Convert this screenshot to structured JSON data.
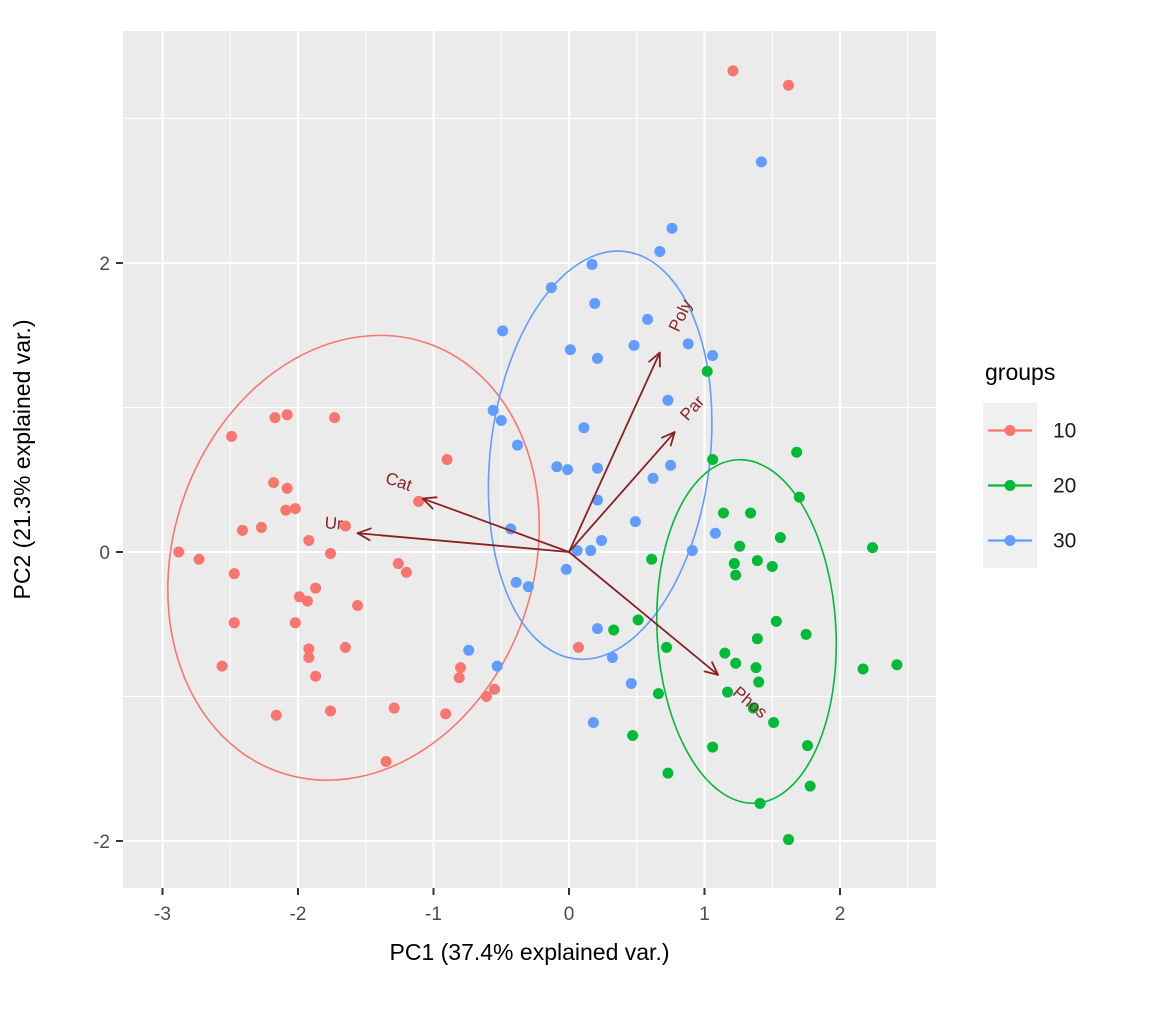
{
  "chart_data": {
    "type": "scatter",
    "title": "",
    "xlabel": "PC1 (37.4% explained var.)",
    "ylabel": "PC2 (21.3% explained var.)",
    "xlim": [
      -3.29,
      2.71
    ],
    "ylim": [
      -2.33,
      3.61
    ],
    "x_ticks": [
      -3,
      -2,
      -1,
      0,
      1,
      2
    ],
    "y_ticks": [
      -2,
      0,
      2
    ],
    "x_minor_ticks": [
      -2.5,
      -1.5,
      -0.5,
      0.5,
      1.5,
      2.5
    ],
    "y_minor_ticks": [
      -1,
      1,
      3
    ],
    "grid": "on",
    "panel_background": "#EBEBEB",
    "grid_color": "#FFFFFF",
    "tick_label_color": "#4D4D4D",
    "axis_title_color": "#000000",
    "legend": {
      "title": "groups",
      "position": "right",
      "key_background": "#F0F0F0",
      "entries": [
        {
          "label": "10",
          "color": "#F8766D"
        },
        {
          "label": "20",
          "color": "#00BA38"
        },
        {
          "label": "30",
          "color": "#619CFF"
        }
      ]
    },
    "series": [
      {
        "name": "10",
        "color": "#F8766D",
        "points": [
          [
            -2.17,
            0.93
          ],
          [
            -2.08,
            0.95
          ],
          [
            -1.73,
            0.93
          ],
          [
            -2.49,
            0.8
          ],
          [
            -0.9,
            0.64
          ],
          [
            -2.18,
            0.48
          ],
          [
            -2.08,
            0.44
          ],
          [
            -2.09,
            0.29
          ],
          [
            -2.02,
            0.3
          ],
          [
            -2.41,
            0.15
          ],
          [
            -2.27,
            0.17
          ],
          [
            -1.65,
            0.18
          ],
          [
            -1.11,
            0.35
          ],
          [
            -1.92,
            0.08
          ],
          [
            -1.76,
            -0.01
          ],
          [
            -2.88,
            0.0
          ],
          [
            -2.73,
            -0.05
          ],
          [
            -1.26,
            -0.08
          ],
          [
            -1.2,
            -0.14
          ],
          [
            -2.47,
            -0.15
          ],
          [
            -1.87,
            -0.25
          ],
          [
            -1.99,
            -0.31
          ],
          [
            -1.93,
            -0.34
          ],
          [
            -1.56,
            -0.37
          ],
          [
            -2.47,
            -0.49
          ],
          [
            -2.02,
            -0.49
          ],
          [
            -1.92,
            -0.67
          ],
          [
            -1.65,
            -0.66
          ],
          [
            -1.92,
            -0.73
          ],
          [
            -2.56,
            -0.79
          ],
          [
            -1.87,
            -0.86
          ],
          [
            -2.16,
            -1.13
          ],
          [
            -1.76,
            -1.1
          ],
          [
            -1.29,
            -1.08
          ],
          [
            -0.91,
            -1.12
          ],
          [
            -0.8,
            -0.8
          ],
          [
            -0.81,
            -0.87
          ],
          [
            -0.61,
            -1.0
          ],
          [
            -0.55,
            -0.95
          ],
          [
            -1.35,
            -1.45
          ],
          [
            1.21,
            3.33
          ],
          [
            1.62,
            3.23
          ],
          [
            0.07,
            -0.66
          ]
        ]
      },
      {
        "name": "20",
        "color": "#00BA38",
        "points": [
          [
            1.02,
            1.25
          ],
          [
            1.68,
            0.69
          ],
          [
            1.06,
            0.64
          ],
          [
            1.7,
            0.38
          ],
          [
            1.14,
            0.27
          ],
          [
            1.34,
            0.27
          ],
          [
            1.56,
            0.1
          ],
          [
            1.26,
            0.04
          ],
          [
            2.24,
            0.03
          ],
          [
            1.39,
            -0.06
          ],
          [
            1.5,
            -0.1
          ],
          [
            1.22,
            -0.08
          ],
          [
            1.23,
            -0.16
          ],
          [
            0.61,
            -0.05
          ],
          [
            0.33,
            -0.54
          ],
          [
            0.51,
            -0.47
          ],
          [
            0.72,
            -0.66
          ],
          [
            0.66,
            -0.98
          ],
          [
            1.15,
            -0.7
          ],
          [
            1.23,
            -0.77
          ],
          [
            1.38,
            -0.8
          ],
          [
            1.17,
            -0.97
          ],
          [
            1.39,
            -0.6
          ],
          [
            1.53,
            -0.48
          ],
          [
            1.75,
            -0.57
          ],
          [
            2.17,
            -0.81
          ],
          [
            2.42,
            -0.78
          ],
          [
            1.4,
            -0.9
          ],
          [
            1.36,
            -1.08
          ],
          [
            1.51,
            -1.18
          ],
          [
            1.76,
            -1.34
          ],
          [
            1.06,
            -1.35
          ],
          [
            0.47,
            -1.27
          ],
          [
            0.73,
            -1.53
          ],
          [
            1.78,
            -1.62
          ],
          [
            1.41,
            -1.74
          ],
          [
            1.62,
            -1.99
          ]
        ]
      },
      {
        "name": "30",
        "color": "#619CFF",
        "points": [
          [
            1.42,
            2.7
          ],
          [
            0.76,
            2.24
          ],
          [
            0.67,
            2.08
          ],
          [
            0.17,
            1.99
          ],
          [
            -0.13,
            1.83
          ],
          [
            0.19,
            1.72
          ],
          [
            0.58,
            1.61
          ],
          [
            -0.49,
            1.53
          ],
          [
            0.01,
            1.4
          ],
          [
            0.21,
            1.34
          ],
          [
            0.48,
            1.43
          ],
          [
            0.88,
            1.44
          ],
          [
            1.06,
            1.36
          ],
          [
            0.73,
            1.05
          ],
          [
            -0.56,
            0.98
          ],
          [
            -0.5,
            0.91
          ],
          [
            -0.38,
            0.74
          ],
          [
            0.11,
            0.86
          ],
          [
            -0.09,
            0.59
          ],
          [
            -0.01,
            0.57
          ],
          [
            0.21,
            0.58
          ],
          [
            0.75,
            0.6
          ],
          [
            0.62,
            0.51
          ],
          [
            0.21,
            0.36
          ],
          [
            0.49,
            0.21
          ],
          [
            -0.43,
            0.16
          ],
          [
            0.24,
            0.08
          ],
          [
            0.16,
            0.01
          ],
          [
            0.06,
            0.01
          ],
          [
            0.91,
            0.01
          ],
          [
            1.08,
            0.13
          ],
          [
            -0.02,
            -0.12
          ],
          [
            -0.39,
            -0.21
          ],
          [
            -0.3,
            -0.24
          ],
          [
            -0.74,
            -0.68
          ],
          [
            -0.53,
            -0.79
          ],
          [
            0.21,
            -0.53
          ],
          [
            0.32,
            -0.73
          ],
          [
            0.46,
            -0.91
          ],
          [
            0.18,
            -1.18
          ]
        ]
      }
    ],
    "ellipses": [
      {
        "group": "10",
        "color": "#F8766D",
        "cx": -1.59,
        "cy": -0.04,
        "rx": 1.33,
        "ry": 1.57,
        "rotate": 19
      },
      {
        "group": "30",
        "color": "#619CFF",
        "cx": 0.23,
        "cy": 0.67,
        "rx": 0.81,
        "ry": 1.42,
        "rotate": 7
      },
      {
        "group": "20",
        "color": "#00BA38",
        "cx": 1.31,
        "cy": -0.55,
        "rx": 0.66,
        "ry": 1.19,
        "rotate": -3
      }
    ],
    "loadings": {
      "arrow_color": "#8B2222",
      "label_color": "#8B2222",
      "origin": [
        0,
        0
      ],
      "arrows": [
        {
          "label": "Poly",
          "x": 0.67,
          "y": 1.38,
          "label_x": 0.86,
          "label_y": 1.62,
          "label_angle": -65
        },
        {
          "label": "Par",
          "x": 0.78,
          "y": 0.83,
          "label_x": 0.94,
          "label_y": 0.97,
          "label_angle": -48
        },
        {
          "label": "Cat",
          "x": -1.08,
          "y": 0.37,
          "label_x": -1.27,
          "label_y": 0.45,
          "label_angle": 19
        },
        {
          "label": "Ur",
          "x": -1.56,
          "y": 0.13,
          "label_x": -1.74,
          "label_y": 0.16,
          "label_angle": 5
        },
        {
          "label": "Phos",
          "x": 1.1,
          "y": -0.85,
          "label_x": 1.31,
          "label_y": -1.07,
          "label_angle": 40
        }
      ]
    }
  }
}
